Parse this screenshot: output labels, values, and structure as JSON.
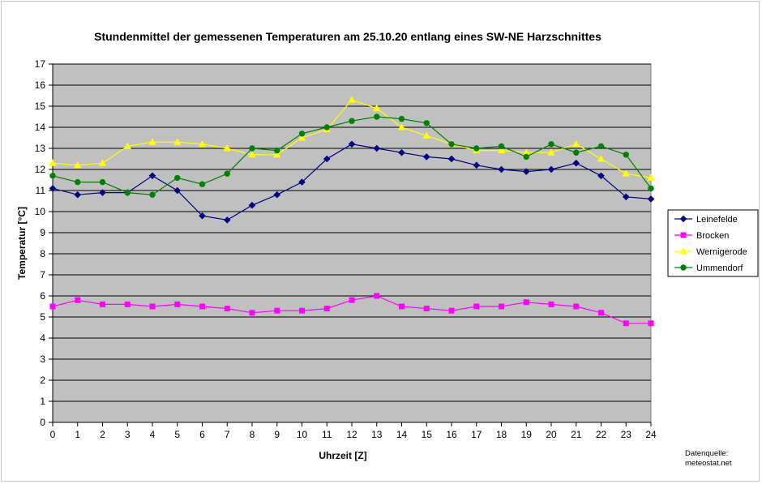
{
  "chart_data": {
    "type": "line",
    "title": "Stundenmittel der gemessenen Temperaturen am 25.10.20 entlang eines SW-NE Harzschnittes",
    "xlabel": "Uhrzeit [Z]",
    "ylabel": "Temperatur [°C]",
    "x": [
      0,
      1,
      2,
      3,
      4,
      5,
      6,
      7,
      8,
      9,
      10,
      11,
      12,
      13,
      14,
      15,
      16,
      17,
      18,
      19,
      20,
      21,
      22,
      23,
      24
    ],
    "xlim": [
      0,
      24
    ],
    "ylim": [
      0,
      17
    ],
    "ystep": 1,
    "grid": true,
    "plot_background": "#c0c0c0",
    "legend_position": "right",
    "series": [
      {
        "name": "Leinefelde",
        "color": "#000080",
        "marker": "diamond",
        "values": [
          11.1,
          10.8,
          10.9,
          10.9,
          11.7,
          11.0,
          9.8,
          9.6,
          10.3,
          10.8,
          11.4,
          12.5,
          13.2,
          13.0,
          12.8,
          12.6,
          12.5,
          12.2,
          12.0,
          11.9,
          12.0,
          12.3,
          11.7,
          10.7,
          10.6
        ]
      },
      {
        "name": "Brocken",
        "color": "#ff00ff",
        "marker": "square",
        "values": [
          5.5,
          5.8,
          5.6,
          5.6,
          5.5,
          5.6,
          5.5,
          5.4,
          5.2,
          5.3,
          5.3,
          5.4,
          5.8,
          6.0,
          5.5,
          5.4,
          5.3,
          5.5,
          5.5,
          5.7,
          5.6,
          5.5,
          5.2,
          4.7,
          4.7
        ]
      },
      {
        "name": "Wernigerode",
        "color": "#ffff00",
        "marker": "triangle",
        "values": [
          12.3,
          12.2,
          12.3,
          13.1,
          13.3,
          13.3,
          13.2,
          13.0,
          12.7,
          12.7,
          13.5,
          13.9,
          15.3,
          14.9,
          14.0,
          13.6,
          13.2,
          12.9,
          12.9,
          12.8,
          12.8,
          13.2,
          12.5,
          11.8,
          11.6
        ]
      },
      {
        "name": "Ummendorf",
        "color": "#008000",
        "marker": "circle",
        "values": [
          11.7,
          11.4,
          11.4,
          10.9,
          10.8,
          11.6,
          11.3,
          11.8,
          13.0,
          12.9,
          13.7,
          14.0,
          14.3,
          14.5,
          14.4,
          14.2,
          13.2,
          13.0,
          13.1,
          12.6,
          13.2,
          12.8,
          13.1,
          12.7,
          11.1
        ]
      }
    ]
  },
  "source_note": {
    "line1": "Datenquelle:",
    "line2": "meteostat.net"
  }
}
